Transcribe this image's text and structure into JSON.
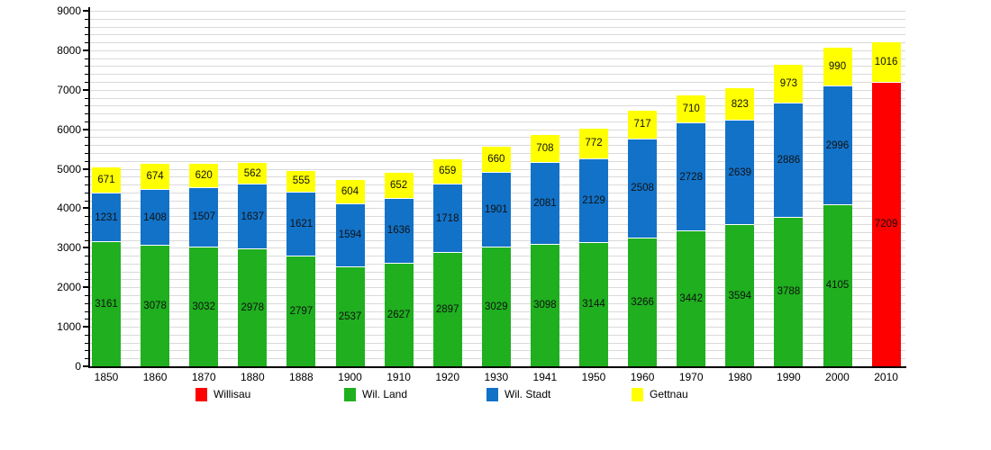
{
  "chart_data": {
    "type": "bar",
    "stacked": true,
    "title": "",
    "xlabel": "",
    "ylabel": "",
    "ylim": [
      0,
      9000
    ],
    "ytick_step": 1000,
    "minor_step": 200,
    "yticks": [
      0,
      1000,
      2000,
      3000,
      4000,
      5000,
      6000,
      7000,
      8000,
      9000
    ],
    "grid": true,
    "legend_position": "bottom",
    "categories": [
      "1850",
      "1860",
      "1870",
      "1880",
      "1888",
      "1900",
      "1910",
      "1920",
      "1930",
      "1941",
      "1950",
      "1960",
      "1970",
      "1980",
      "1990",
      "2000",
      "2010"
    ],
    "series": [
      {
        "name": "Willisau",
        "color": "#ff0000",
        "values": [
          null,
          null,
          null,
          null,
          null,
          null,
          null,
          null,
          null,
          null,
          null,
          null,
          null,
          null,
          null,
          null,
          7209
        ]
      },
      {
        "name": "Wil. Land",
        "color": "#1faf1f",
        "values": [
          3161,
          3078,
          3032,
          2978,
          2797,
          2537,
          2627,
          2897,
          3029,
          3098,
          3144,
          3266,
          3442,
          3594,
          3788,
          4105,
          null
        ]
      },
      {
        "name": "Wil. Stadt",
        "color": "#1272c8",
        "values": [
          1231,
          1408,
          1507,
          1637,
          1621,
          1594,
          1636,
          1718,
          1901,
          2081,
          2129,
          2508,
          2728,
          2639,
          2886,
          2996,
          null
        ]
      },
      {
        "name": "Gettnau",
        "color": "#ffff00",
        "values": [
          671,
          674,
          620,
          562,
          555,
          604,
          652,
          659,
          660,
          708,
          772,
          717,
          710,
          823,
          973,
          990,
          1016
        ]
      }
    ],
    "legend": [
      "Willisau",
      "Wil. Land",
      "Wil. Stadt",
      "Gettnau"
    ]
  },
  "colors": {
    "background": "#ffffff",
    "gridline": "#dadada",
    "axis": "#000000",
    "willisau": "#ff0000",
    "wil_land": "#1faf1f",
    "wil_stadt": "#1272c8",
    "gettnau": "#ffff00"
  }
}
